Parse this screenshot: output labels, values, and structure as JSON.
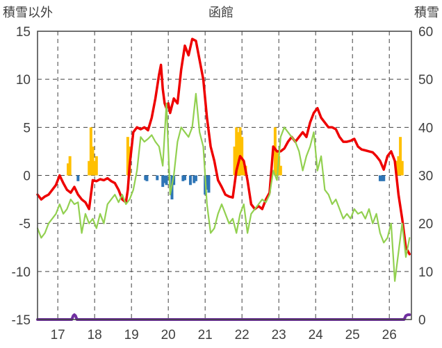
{
  "chart_data": {
    "type": "line",
    "title": "函館",
    "left_axis_label": "積雪以外",
    "right_axis_label": "積雪",
    "ylim_left": [
      -15,
      15
    ],
    "ylim_right": [
      0,
      60
    ],
    "y_ticks_left": [
      "15",
      "10",
      "5",
      "0",
      "-5",
      "-10",
      "-15"
    ],
    "y_ticks_right": [
      "60",
      "50",
      "40",
      "30",
      "20",
      "10",
      "0"
    ],
    "x_ticks": [
      "17",
      "18",
      "19",
      "20",
      "21",
      "22",
      "23",
      "24",
      "25",
      "26"
    ],
    "xlim": [
      16.45,
      26.6
    ],
    "grid": "dashed",
    "colors": {
      "red": "#ee0000",
      "green": "#92d050",
      "snow": "#ffc000",
      "negative": "#2e75b6",
      "purple": "#7030a0",
      "grid": "#404040"
    },
    "series": [
      {
        "color": "red",
        "x": [
          16.45,
          16.55,
          16.65,
          16.75,
          16.85,
          16.95,
          17.05,
          17.15,
          17.25,
          17.35,
          17.45,
          17.55,
          17.65,
          17.75,
          17.85,
          17.95,
          18.05,
          18.15,
          18.25,
          18.35,
          18.45,
          18.55,
          18.65,
          18.75,
          18.85,
          18.9,
          18.95,
          19.05,
          19.15,
          19.25,
          19.35,
          19.45,
          19.55,
          19.65,
          19.75,
          19.8,
          19.85,
          19.9,
          19.95,
          20.0,
          20.05,
          20.15,
          20.25,
          20.35,
          20.45,
          20.55,
          20.65,
          20.75,
          20.85,
          20.95,
          21.05,
          21.15,
          21.25,
          21.35,
          21.45,
          21.55,
          21.65,
          21.75,
          21.85,
          21.95,
          22.05,
          22.15,
          22.25,
          22.35,
          22.45,
          22.55,
          22.65,
          22.75,
          22.85,
          22.95,
          23.05,
          23.15,
          23.25,
          23.35,
          23.45,
          23.55,
          23.65,
          23.75,
          23.85,
          23.95,
          24.05,
          24.15,
          24.25,
          24.35,
          24.45,
          24.55,
          24.65,
          24.75,
          24.85,
          24.95,
          25.05,
          25.15,
          25.25,
          25.35,
          25.45,
          25.55,
          25.65,
          25.75,
          25.85,
          25.95,
          26.05,
          26.15,
          26.25,
          26.35,
          26.45,
          26.55
        ],
        "values": [
          -2,
          -2.5,
          -2.2,
          -2,
          -1.5,
          -1,
          0,
          -0.8,
          -1.5,
          -1.8,
          -1.2,
          -2,
          -2.5,
          -2.8,
          -3.5,
          -0.5,
          -0.6,
          -0.4,
          -0.5,
          -0.3,
          -0.6,
          -0.8,
          -1.5,
          -2.5,
          -2.8,
          -1.5,
          1,
          4.5,
          5,
          4.8,
          5,
          4.7,
          6,
          8,
          10.5,
          11.5,
          9,
          7.5,
          7,
          7.5,
          6.5,
          8,
          7.5,
          11,
          13.5,
          12.5,
          14.2,
          14,
          12,
          10,
          6,
          3,
          1.5,
          -0.5,
          -1.2,
          -2,
          -2.2,
          -2.3,
          0.5,
          2,
          1.5,
          -0.5,
          -3,
          -3.5,
          -3.2,
          -3.5,
          -2.5,
          -1.8,
          3,
          2.5,
          2.5,
          2.8,
          3.5,
          4,
          3.5,
          4,
          4.5,
          4,
          5.5,
          6.5,
          7,
          6,
          5.5,
          5,
          5,
          4.8,
          4,
          3.5,
          3.5,
          3.6,
          3.8,
          3,
          2.7,
          2.6,
          2.5,
          2.4,
          2,
          1.5,
          0.6,
          2,
          2.5,
          1.5,
          -2,
          -4.5,
          -7.5,
          -8.2
        ]
      },
      {
        "color": "green",
        "x": [
          16.45,
          16.55,
          16.65,
          16.75,
          16.85,
          16.95,
          17.05,
          17.15,
          17.25,
          17.35,
          17.45,
          17.55,
          17.65,
          17.75,
          17.85,
          17.95,
          18.05,
          18.15,
          18.25,
          18.35,
          18.45,
          18.55,
          18.65,
          18.75,
          18.85,
          18.95,
          19.05,
          19.15,
          19.25,
          19.35,
          19.45,
          19.55,
          19.65,
          19.75,
          19.85,
          19.95,
          20.05,
          20.15,
          20.25,
          20.35,
          20.45,
          20.55,
          20.65,
          20.75,
          20.85,
          20.95,
          21.05,
          21.15,
          21.25,
          21.35,
          21.45,
          21.55,
          21.65,
          21.75,
          21.85,
          21.95,
          22.05,
          22.15,
          22.25,
          22.35,
          22.45,
          22.55,
          22.65,
          22.75,
          22.85,
          22.95,
          23.05,
          23.15,
          23.25,
          23.35,
          23.45,
          23.55,
          23.65,
          23.75,
          23.85,
          23.95,
          24.05,
          24.15,
          24.25,
          24.35,
          24.45,
          24.55,
          24.65,
          24.75,
          24.85,
          24.95,
          25.05,
          25.15,
          25.25,
          25.35,
          25.45,
          25.55,
          25.65,
          25.75,
          25.85,
          25.95,
          26.05,
          26.15,
          26.25,
          26.35,
          26.45,
          26.55
        ],
        "values": [
          -5.5,
          -6.5,
          -6,
          -5,
          -4.5,
          -4,
          -3,
          -4,
          -3.5,
          -2.5,
          -3,
          -2.8,
          -6,
          -4,
          -5,
          -4.5,
          -5.5,
          -4,
          -5,
          -3,
          -2.5,
          -2,
          -2.8,
          -2,
          -3,
          -2.5,
          -1.5,
          0.5,
          4,
          3.5,
          3.8,
          4.2,
          3.5,
          3,
          1,
          7.5,
          -2,
          0,
          3.5,
          5,
          4.5,
          4,
          5,
          8.5,
          4.5,
          3,
          -3,
          -6,
          -5.5,
          -4,
          -3,
          -4,
          -5,
          -4.5,
          -6,
          -4,
          -3,
          -6,
          -4,
          -3.5,
          -3,
          -2.5,
          -2.8,
          -2,
          0.5,
          -0.5,
          4,
          5,
          4.5,
          4,
          3.5,
          2.5,
          0.5,
          2,
          3,
          4.5,
          0.5,
          2,
          -1.5,
          -2,
          -3,
          -2.5,
          -3.5,
          -4.5,
          -4,
          -4.5,
          -3.5,
          -4,
          -3.8,
          -4.5,
          -3.5,
          -5,
          -4,
          -6,
          -7,
          -6.5,
          -5,
          -11,
          -8,
          -5,
          -8.5,
          -6.5
        ]
      },
      {
        "color": "purple",
        "x": [
          16.45,
          17.38,
          17.42,
          17.45,
          17.48,
          17.52,
          26.4,
          26.45,
          26.5,
          26.55
        ],
        "values": [
          -15,
          -15,
          -14.6,
          -14.5,
          -14.6,
          -15,
          -15,
          -14.6,
          -14.5,
          -14.5
        ]
      }
    ],
    "bars": [
      {
        "color": "snow",
        "x": [
          17.28,
          17.33
        ],
        "values": [
          2.5,
          4
        ],
        "axis": "right"
      },
      {
        "color": "snow",
        "x": [
          17.85,
          17.9,
          17.95,
          18.0,
          18.05
        ],
        "values": [
          3,
          10,
          6,
          3,
          4
        ],
        "axis": "right"
      },
      {
        "color": "snow",
        "x": [
          18.9,
          18.95
        ],
        "values": [
          8,
          6
        ],
        "axis": "right"
      },
      {
        "color": "snow",
        "x": [
          21.8,
          21.85,
          21.9,
          21.95,
          22.0,
          22.05,
          22.1
        ],
        "values": [
          6,
          10,
          9,
          10,
          8,
          2,
          2
        ],
        "axis": "right"
      },
      {
        "color": "snow",
        "x": [
          22.9,
          22.95,
          23.0,
          23.05
        ],
        "values": [
          10,
          5,
          4,
          2
        ],
        "axis": "right"
      },
      {
        "color": "snow",
        "x": [
          26.2,
          26.25,
          26.3,
          26.35
        ],
        "values": [
          3,
          4,
          8,
          3
        ],
        "axis": "right"
      },
      {
        "color": "negative",
        "x": [
          17.55
        ],
        "values": [
          -0.6
        ],
        "axis": "left"
      },
      {
        "color": "negative",
        "x": [
          19.38,
          19.42,
          19.7,
          19.85,
          19.9,
          19.95,
          20.1,
          20.15,
          20.4,
          20.45,
          20.6,
          20.7,
          20.75,
          21.0,
          21.05,
          21.1
        ],
        "values": [
          -0.5,
          -0.6,
          -0.5,
          -1.2,
          -0.8,
          -1,
          -2.5,
          -1,
          -0.6,
          -0.5,
          -1,
          -0.8,
          -0.6,
          -2,
          -1.5,
          -1.8
        ],
        "axis": "left"
      },
      {
        "color": "negative",
        "x": [
          25.75,
          25.8,
          25.85
        ],
        "values": [
          -0.6,
          -0.6,
          -0.6
        ],
        "axis": "left"
      }
    ]
  }
}
